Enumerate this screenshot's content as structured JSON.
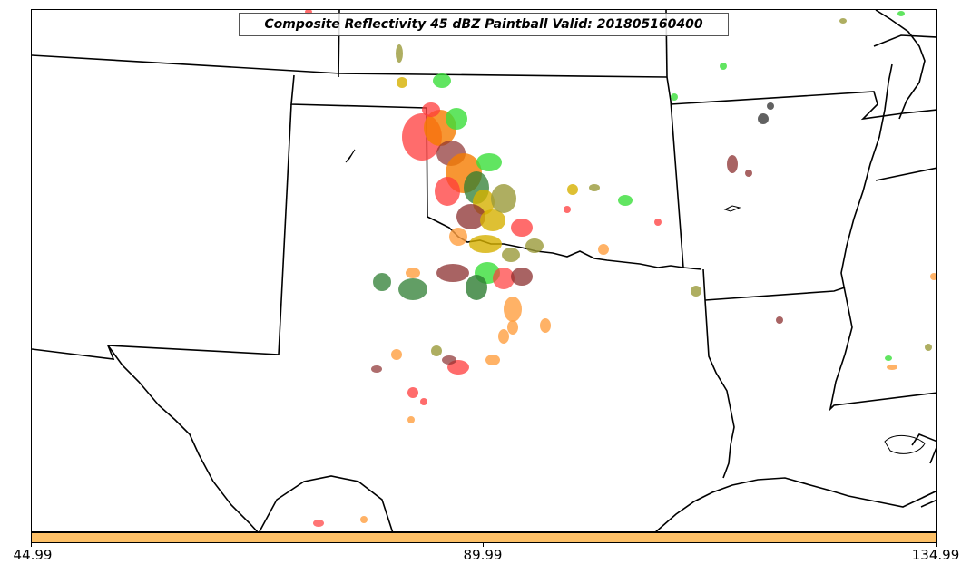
{
  "title": "Composite Reflectivity 45 dBZ Paintball Valid: 201805160400",
  "colorbar": {
    "color": "#fdc067",
    "tick_labels": [
      "44.99",
      "89.99",
      "134.99"
    ]
  },
  "legend_colors": {
    "red": "#ff3b3b",
    "orange": "#f57c00",
    "light_orange": "#ff9f40",
    "green": "#3adf3a",
    "dark_green": "#2e7d32",
    "olive": "#9a9a3a",
    "gold": "#d6b000",
    "brown": "#8b2f2f",
    "dark_gray": "#3a3a3a"
  }
}
